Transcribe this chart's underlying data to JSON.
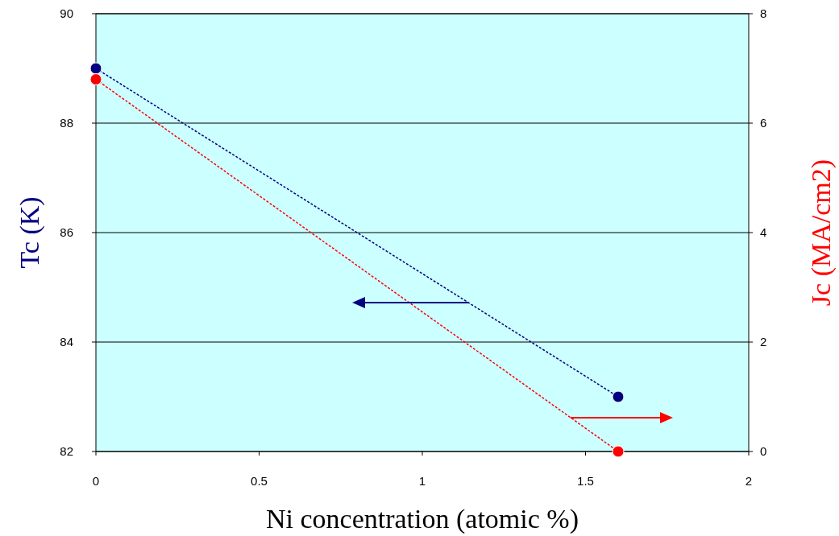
{
  "chart_data": {
    "type": "line",
    "xlabel": "Ni concentration (atomic %)",
    "ylabel": "Tc (K)",
    "y2label": "Jc (MA/cm2)",
    "x": [
      0,
      1.6
    ],
    "series": [
      {
        "color": "#000080",
        "values": [
          89,
          83
        ]
      },
      {
        "color": "#ff0000",
        "values": [
          6.8,
          0
        ],
        "axis": "y2"
      }
    ],
    "xlim": [
      0,
      2
    ],
    "xticks": [
      0,
      0.5,
      1,
      1.5,
      2
    ],
    "ylim": [
      82,
      90
    ],
    "yticks": [
      82,
      84,
      86,
      88,
      90
    ],
    "y2lim": [
      0,
      8
    ],
    "y2ticks": [
      0,
      2,
      4,
      6,
      8
    ],
    "grid": "y",
    "marker": "circle",
    "line_style": "dotted"
  }
}
